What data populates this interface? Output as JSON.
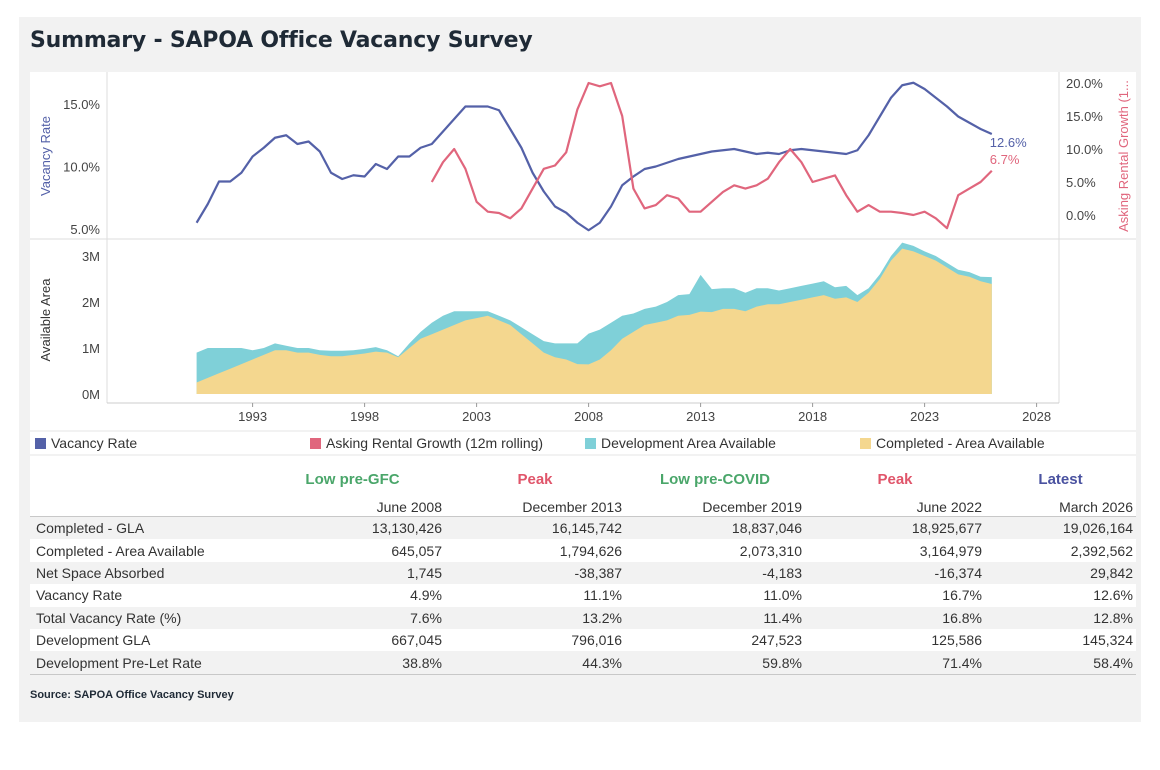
{
  "title": "Summary - SAPOA Office Vacancy Survey",
  "source": "Source: SAPOA Office Vacancy Survey",
  "colors": {
    "vacancy": "#5461a8",
    "rental": "#e0667d",
    "development": "#7fd0d8",
    "completed": "#f4d78f"
  },
  "legend": [
    {
      "label": "Vacancy Rate",
      "color": "#5461a8"
    },
    {
      "label": "Asking Rental Growth (12m rolling)",
      "color": "#e0667d"
    },
    {
      "label": "Development Area Available",
      "color": "#7fd0d8"
    },
    {
      "label": "Completed - Area Available",
      "color": "#f4d78f"
    }
  ],
  "chart_data": [
    {
      "type": "line",
      "ylabel": "Vacancy Rate",
      "y2label": "Asking Rental Growth (1...",
      "yticks": [
        "5.0%",
        "10.0%",
        "15.0%"
      ],
      "y2ticks": [
        "0.0%",
        "5.0%",
        "10.0%",
        "15.0%",
        "20.0%"
      ],
      "ylim": [
        4.5,
        18.0
      ],
      "y2lim": [
        -2.0,
        22.0
      ],
      "end_labels": {
        "vacancy": "12.6%",
        "rental": "6.7%"
      },
      "series": [
        {
          "name": "Vacancy Rate",
          "axis": "left",
          "x": [
            1990.5,
            1991.0,
            1991.5,
            1992.0,
            1992.5,
            1993.0,
            1993.5,
            1994.0,
            1994.5,
            1995.0,
            1995.5,
            1996.0,
            1996.5,
            1997.0,
            1997.5,
            1998.0,
            1998.5,
            1999.0,
            1999.5,
            2000.0,
            2000.5,
            2001.0,
            2001.5,
            2002.0,
            2002.5,
            2003.0,
            2003.5,
            2004.0,
            2004.5,
            2005.0,
            2005.5,
            2006.0,
            2006.5,
            2007.0,
            2007.5,
            2008.0,
            2008.5,
            2009.0,
            2009.5,
            2010.0,
            2010.5,
            2011.0,
            2011.5,
            2012.0,
            2012.5,
            2013.0,
            2013.5,
            2014.0,
            2014.5,
            2015.0,
            2015.5,
            2016.0,
            2016.5,
            2017.0,
            2017.5,
            2018.0,
            2018.5,
            2019.0,
            2019.5,
            2020.0,
            2020.5,
            2021.0,
            2021.5,
            2022.0,
            2022.5,
            2023.0,
            2023.5,
            2024.0,
            2024.5,
            2025.0,
            2025.5,
            2026.0
          ],
          "values": [
            5.5,
            7.0,
            8.8,
            8.8,
            9.5,
            10.8,
            11.5,
            12.3,
            12.5,
            11.8,
            12.0,
            11.2,
            9.5,
            9.0,
            9.3,
            9.2,
            10.2,
            9.8,
            10.8,
            10.8,
            11.5,
            11.8,
            12.8,
            13.8,
            14.8,
            14.8,
            14.8,
            14.5,
            13.0,
            11.5,
            9.5,
            8.0,
            6.8,
            6.3,
            5.5,
            4.9,
            5.5,
            6.8,
            8.5,
            9.2,
            9.8,
            10.0,
            10.3,
            10.6,
            10.8,
            11.0,
            11.2,
            11.3,
            11.4,
            11.2,
            11.0,
            11.1,
            11.0,
            11.3,
            11.4,
            11.3,
            11.2,
            11.1,
            11.0,
            11.3,
            12.5,
            14.0,
            15.5,
            16.5,
            16.7,
            16.2,
            15.5,
            14.8,
            14.0,
            13.5,
            13.0,
            12.6
          ]
        },
        {
          "name": "Asking Rental Growth (12m rolling)",
          "axis": "right",
          "x": [
            2001.0,
            2001.5,
            2002.0,
            2002.5,
            2003.0,
            2003.5,
            2004.0,
            2004.5,
            2005.0,
            2005.5,
            2006.0,
            2006.5,
            2007.0,
            2007.5,
            2008.0,
            2008.5,
            2009.0,
            2009.5,
            2010.0,
            2010.5,
            2011.0,
            2011.5,
            2012.0,
            2012.5,
            2013.0,
            2013.5,
            2014.0,
            2014.5,
            2015.0,
            2015.5,
            2016.0,
            2016.5,
            2017.0,
            2017.5,
            2018.0,
            2018.5,
            2019.0,
            2019.5,
            2020.0,
            2020.5,
            2021.0,
            2021.5,
            2022.0,
            2022.5,
            2023.0,
            2023.5,
            2024.0,
            2024.5,
            2025.0,
            2025.5,
            2026.0
          ],
          "values": [
            5.0,
            8.0,
            10.0,
            7.0,
            2.0,
            0.5,
            0.3,
            -0.5,
            1.0,
            4.0,
            7.0,
            7.5,
            9.5,
            16.0,
            20.0,
            19.5,
            20.0,
            15.0,
            4.0,
            1.0,
            1.5,
            3.0,
            2.5,
            0.5,
            0.5,
            2.0,
            3.5,
            4.5,
            4.0,
            4.5,
            5.5,
            8.0,
            10.0,
            8.0,
            5.0,
            5.5,
            6.0,
            3.0,
            0.5,
            1.5,
            0.5,
            0.5,
            0.3,
            0.0,
            0.5,
            -0.5,
            -2.0,
            3.0,
            4.0,
            5.0,
            6.7
          ]
        }
      ]
    },
    {
      "type": "area",
      "ylabel": "Available Area",
      "yticks": [
        "0M",
        "1M",
        "2M",
        "3M"
      ],
      "ylim": [
        0,
        3.3
      ],
      "xticks": [
        "1993",
        "1998",
        "2003",
        "2008",
        "2013",
        "2018",
        "2023",
        "2028"
      ],
      "xlim": [
        1986.5,
        2029
      ],
      "series": [
        {
          "name": "Completed - Area Available",
          "x": [
            1990.5,
            1991.0,
            1991.5,
            1992.0,
            1992.5,
            1993.0,
            1993.5,
            1994.0,
            1994.5,
            1995.0,
            1995.5,
            1996.0,
            1996.5,
            1997.0,
            1997.5,
            1998.0,
            1998.5,
            1999.0,
            1999.5,
            2000.0,
            2000.5,
            2001.0,
            2001.5,
            2002.0,
            2002.5,
            2003.0,
            2003.5,
            2004.0,
            2004.5,
            2005.0,
            2005.5,
            2006.0,
            2006.5,
            2007.0,
            2007.5,
            2008.0,
            2008.5,
            2009.0,
            2009.5,
            2010.0,
            2010.5,
            2011.0,
            2011.5,
            2012.0,
            2012.5,
            2013.0,
            2013.5,
            2014.0,
            2014.5,
            2015.0,
            2015.5,
            2016.0,
            2016.5,
            2017.0,
            2017.5,
            2018.0,
            2018.5,
            2019.0,
            2019.5,
            2020.0,
            2020.5,
            2021.0,
            2021.5,
            2022.0,
            2022.5,
            2023.0,
            2023.5,
            2024.0,
            2024.5,
            2025.0,
            2025.5,
            2026.0
          ],
          "values": [
            0.25,
            0.35,
            0.45,
            0.55,
            0.65,
            0.75,
            0.85,
            0.95,
            0.95,
            0.9,
            0.9,
            0.85,
            0.82,
            0.82,
            0.85,
            0.88,
            0.92,
            0.9,
            0.8,
            1.0,
            1.2,
            1.3,
            1.4,
            1.5,
            1.6,
            1.65,
            1.7,
            1.6,
            1.5,
            1.3,
            1.1,
            0.9,
            0.8,
            0.75,
            0.65,
            0.645,
            0.75,
            0.95,
            1.2,
            1.35,
            1.5,
            1.55,
            1.6,
            1.7,
            1.72,
            1.79,
            1.78,
            1.85,
            1.85,
            1.8,
            1.9,
            1.95,
            1.95,
            2.0,
            2.05,
            2.1,
            2.15,
            2.07,
            2.1,
            2.0,
            2.2,
            2.5,
            2.9,
            3.16,
            3.1,
            3.0,
            2.9,
            2.75,
            2.6,
            2.55,
            2.45,
            2.39
          ]
        },
        {
          "name": "Development Area Available",
          "x": [
            1990.5,
            1991.0,
            1991.5,
            1992.0,
            1992.5,
            1993.0,
            1993.5,
            1994.0,
            1994.5,
            1995.0,
            1995.5,
            1996.0,
            1996.5,
            1997.0,
            1997.5,
            1998.0,
            1998.5,
            1999.0,
            1999.5,
            2000.0,
            2000.5,
            2001.0,
            2001.5,
            2002.0,
            2002.5,
            2003.0,
            2003.5,
            2004.0,
            2004.5,
            2005.0,
            2005.5,
            2006.0,
            2006.5,
            2007.0,
            2007.5,
            2008.0,
            2008.5,
            2009.0,
            2009.5,
            2010.0,
            2010.5,
            2011.0,
            2011.5,
            2012.0,
            2012.5,
            2013.0,
            2013.5,
            2014.0,
            2014.5,
            2015.0,
            2015.5,
            2016.0,
            2016.5,
            2017.0,
            2017.5,
            2018.0,
            2018.5,
            2019.0,
            2019.5,
            2020.0,
            2020.5,
            2021.0,
            2021.5,
            2022.0,
            2022.5,
            2023.0,
            2023.5,
            2024.0,
            2024.5,
            2025.0,
            2025.5,
            2026.0
          ],
          "values": [
            0.65,
            0.65,
            0.55,
            0.45,
            0.35,
            0.2,
            0.15,
            0.15,
            0.1,
            0.1,
            0.1,
            0.1,
            0.12,
            0.12,
            0.1,
            0.1,
            0.1,
            0.05,
            0.02,
            0.1,
            0.15,
            0.25,
            0.3,
            0.3,
            0.2,
            0.15,
            0.1,
            0.1,
            0.1,
            0.15,
            0.2,
            0.25,
            0.3,
            0.35,
            0.45,
            0.667,
            0.65,
            0.6,
            0.5,
            0.4,
            0.35,
            0.35,
            0.4,
            0.45,
            0.45,
            0.8,
            0.5,
            0.45,
            0.45,
            0.4,
            0.4,
            0.35,
            0.3,
            0.3,
            0.3,
            0.3,
            0.3,
            0.25,
            0.25,
            0.15,
            0.1,
            0.1,
            0.1,
            0.13,
            0.12,
            0.1,
            0.1,
            0.1,
            0.1,
            0.1,
            0.1,
            0.15
          ]
        }
      ]
    }
  ],
  "table": {
    "headers": [
      {
        "label": "Low pre-GFC",
        "date": "June 2008",
        "color": "#4aa66a"
      },
      {
        "label": "Peak",
        "date": "December 2013",
        "color": "#e0556a"
      },
      {
        "label": "Low pre-COVID",
        "date": "December 2019",
        "color": "#4aa66a"
      },
      {
        "label": "Peak",
        "date": "June 2022",
        "color": "#e0556a"
      },
      {
        "label": "Latest",
        "date": "March 2026",
        "color": "#4a52a0"
      }
    ],
    "rows": [
      {
        "label": "Completed - GLA",
        "values": [
          "13,130,426",
          "16,145,742",
          "18,837,046",
          "18,925,677",
          "19,026,164"
        ]
      },
      {
        "label": "Completed - Area Available",
        "values": [
          "645,057",
          "1,794,626",
          "2,073,310",
          "3,164,979",
          "2,392,562"
        ]
      },
      {
        "label": "Net Space Absorbed",
        "values": [
          "1,745",
          "-38,387",
          "-4,183",
          "-16,374",
          "29,842"
        ]
      },
      {
        "label": "Vacancy Rate",
        "values": [
          "4.9%",
          "11.1%",
          "11.0%",
          "16.7%",
          "12.6%"
        ]
      },
      {
        "label": "Total Vacancy Rate (%)",
        "values": [
          "7.6%",
          "13.2%",
          "11.4%",
          "16.8%",
          "12.8%"
        ]
      },
      {
        "label": "Development GLA",
        "values": [
          "667,045",
          "796,016",
          "247,523",
          "125,586",
          "145,324"
        ]
      },
      {
        "label": "Development Pre-Let Rate",
        "values": [
          "38.8%",
          "44.3%",
          "59.8%",
          "71.4%",
          "58.4%"
        ]
      }
    ]
  }
}
